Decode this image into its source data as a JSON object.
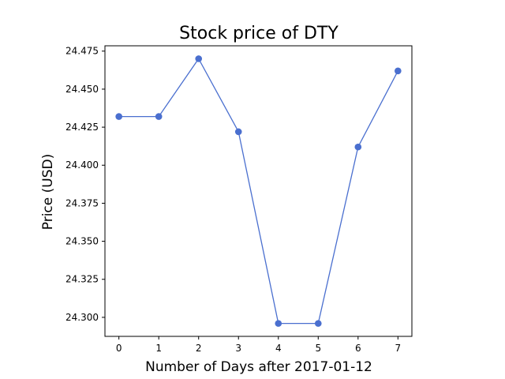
{
  "chart_data": {
    "type": "line",
    "title": "Stock price of DTY",
    "xlabel": "Number of Days after 2017-01-12",
    "ylabel": "Price (USD)",
    "x": [
      0,
      1,
      2,
      3,
      4,
      5,
      6,
      7
    ],
    "series": [
      {
        "values": [
          24.432,
          24.432,
          24.47,
          24.422,
          24.296,
          24.296,
          24.412,
          24.462
        ]
      }
    ],
    "xlim": [
      -0.35,
      7.35
    ],
    "ylim": [
      24.2875,
      24.4785
    ],
    "xticks": [
      "0",
      "1",
      "2",
      "3",
      "4",
      "5",
      "6",
      "7"
    ],
    "yticks": [
      24.3,
      24.325,
      24.35,
      24.375,
      24.4,
      24.425,
      24.45,
      24.475
    ],
    "ytick_labels": [
      "24.300",
      "24.325",
      "24.350",
      "24.375",
      "24.400",
      "24.425",
      "24.450",
      "24.475"
    ],
    "grid": false,
    "line_color": "#4a6fcf",
    "marker": "circle"
  }
}
